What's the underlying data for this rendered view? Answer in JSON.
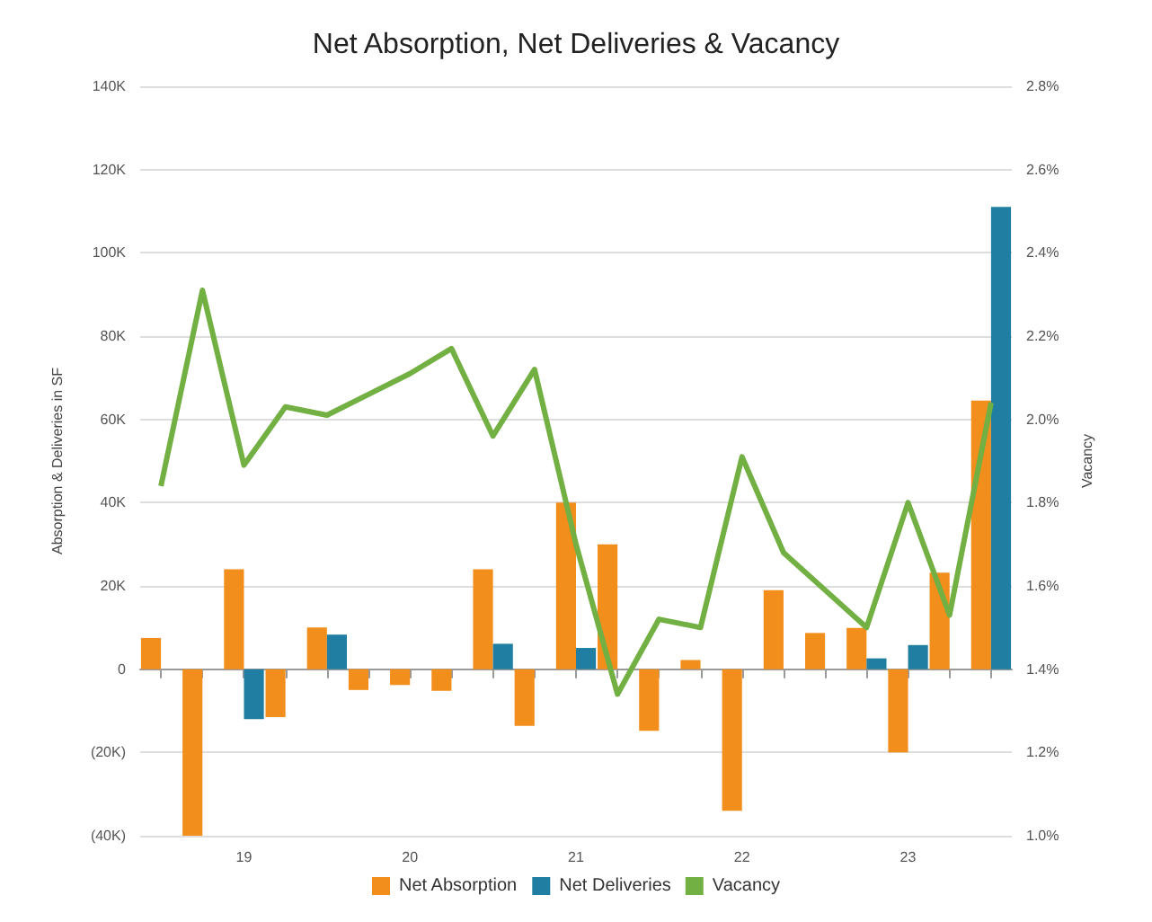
{
  "chart_data": {
    "type": "bar",
    "title": "Net Absorption, Net Deliveries & Vacancy",
    "ylabel": "Absorption & Deliveries in SF",
    "y2label": "Vacancy",
    "categories": [
      null,
      null,
      "19",
      null,
      null,
      null,
      "20",
      null,
      null,
      null,
      "21",
      null,
      null,
      null,
      "22",
      null,
      null,
      null,
      "23",
      null,
      null
    ],
    "series": [
      {
        "name": "Net Absorption",
        "color": "#f28e1c",
        "values": [
          7.5,
          -40,
          24,
          -11.5,
          10,
          -5,
          -3.8,
          -5.2,
          24,
          -13.6,
          40,
          30,
          -14.8,
          2.2,
          -34,
          19,
          8.7,
          9.9,
          -20,
          23.2,
          64.5
        ]
      },
      {
        "name": "Net Deliveries",
        "color": "#1f7ea1",
        "values": [
          0,
          0,
          -12,
          0,
          8.3,
          0,
          0,
          0,
          6.1,
          0,
          5.1,
          0,
          0,
          0,
          0,
          0,
          0,
          2.6,
          5.8,
          0,
          111
        ]
      },
      {
        "name": "Vacancy",
        "type": "line",
        "axis": "y2",
        "color": "#72b043",
        "values": [
          1.84,
          2.31,
          1.89,
          2.03,
          2.01,
          2.06,
          2.11,
          2.17,
          1.96,
          2.12,
          1.7,
          1.34,
          1.52,
          1.5,
          1.91,
          1.68,
          1.59,
          1.5,
          1.8,
          1.53,
          2.04
        ]
      }
    ],
    "ylim": [
      -40,
      140
    ],
    "yticks": [
      {
        "value": -40,
        "label": "(40K)"
      },
      {
        "value": -20,
        "label": "(20K)"
      },
      0,
      {
        "value": 20,
        "label": "20K"
      },
      {
        "value": 40,
        "label": "40K"
      },
      {
        "value": 60,
        "label": "60K"
      },
      {
        "value": 80,
        "label": "80K"
      },
      {
        "value": 100,
        "label": "100K"
      },
      {
        "value": 120,
        "label": "120K"
      },
      {
        "value": 140,
        "label": "140K"
      }
    ],
    "y2lim": [
      1.0,
      2.8
    ],
    "y2ticks": [
      {
        "value": 1.0,
        "label": "1.0%"
      },
      {
        "value": 1.2,
        "label": "1.2%"
      },
      {
        "value": 1.4,
        "label": "1.4%"
      },
      {
        "value": 1.6,
        "label": "1.6%"
      },
      {
        "value": 1.8,
        "label": "1.8%"
      },
      {
        "value": 2.0,
        "label": "2.0%"
      },
      {
        "value": 2.2,
        "label": "2.2%"
      },
      {
        "value": 2.4,
        "label": "2.4%"
      },
      {
        "value": 2.6,
        "label": "2.6%"
      },
      {
        "value": 2.8,
        "label": "2.8%"
      }
    ],
    "grid": "y",
    "legend": "bottom",
    "marker": "none"
  }
}
